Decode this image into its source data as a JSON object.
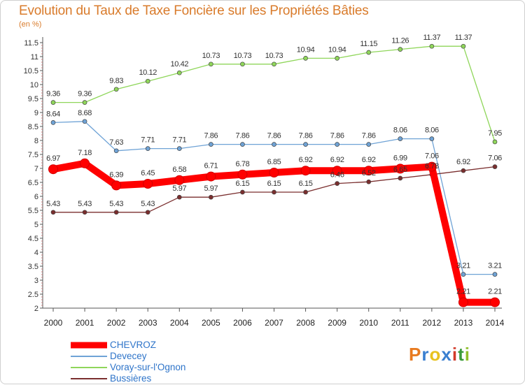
{
  "chart_data": {
    "type": "line",
    "title": "Evolution du Taux de Taxe Foncière sur les Propriétés Bâties",
    "ylabel": "(en %)",
    "xlabel": "",
    "x": [
      "2000",
      "2001",
      "2002",
      "2003",
      "2004",
      "2005",
      "2006",
      "2007",
      "2008",
      "2009",
      "2010",
      "2011",
      "2012",
      "2013",
      "2014"
    ],
    "ylim": [
      2,
      11.5
    ],
    "yticks": [
      "2",
      "2.5",
      "3",
      "3.5",
      "4",
      "4.5",
      "5",
      "5.5",
      "6",
      "6.5",
      "7",
      "7.5",
      "8",
      "8.5",
      "9",
      "9.5",
      "10",
      "10.5",
      "11",
      "11.5"
    ],
    "grid": false,
    "legend_position": "bottom-left",
    "series": [
      {
        "name": "CHEVROZ",
        "color": "#ff0000",
        "values": [
          6.97,
          7.18,
          6.39,
          6.45,
          6.58,
          6.71,
          6.78,
          6.85,
          6.92,
          6.92,
          6.92,
          6.99,
          7.06,
          2.21,
          2.21
        ],
        "labels": [
          "6.97",
          "7.18",
          "6.39",
          "6.45",
          "6.58",
          "6.71",
          "6.78",
          "6.85",
          "6.92",
          "6.92",
          "6.92",
          "6.99",
          "7.06",
          "2.21",
          "2.21"
        ]
      },
      {
        "name": "Devecey",
        "color": "#6fa3d6",
        "values": [
          8.64,
          8.68,
          7.63,
          7.71,
          7.71,
          7.86,
          7.86,
          7.86,
          7.86,
          7.86,
          7.86,
          8.06,
          8.06,
          3.21,
          3.21
        ],
        "labels": [
          "8.64",
          "8.68",
          "7.63",
          "7.71",
          "7.71",
          "7.86",
          "7.86",
          "7.86",
          "7.86",
          "7.86",
          "7.86",
          "8.06",
          "8.06",
          "3.21",
          "3.21"
        ]
      },
      {
        "name": "Voray-sur-l'Ognon",
        "color": "#8fd65a",
        "values": [
          9.36,
          9.36,
          9.83,
          10.12,
          10.42,
          10.73,
          10.73,
          10.73,
          10.94,
          10.94,
          11.15,
          11.26,
          11.37,
          11.37,
          7.95
        ],
        "labels": [
          "9.36",
          "9.36",
          "9.83",
          "10.12",
          "10.42",
          "10.73",
          "10.73",
          "10.73",
          "10.94",
          "10.94",
          "11.15",
          "11.26",
          "11.37",
          "11.37",
          "7.95"
        ]
      },
      {
        "name": "Bussières",
        "color": "#7a2e2e",
        "values": [
          5.43,
          5.43,
          5.43,
          5.43,
          5.97,
          5.97,
          6.15,
          6.15,
          6.15,
          6.46,
          6.52,
          6.65,
          6.78,
          6.92,
          7.06
        ],
        "labels": [
          "5.43",
          "5.43",
          "5.43",
          "5.43",
          "5.97",
          "5.97",
          "6.15",
          "6.15",
          "6.15",
          "6.46",
          "6.52",
          "6.65",
          "6.78",
          "6.92",
          "7.06"
        ]
      }
    ]
  },
  "legend": [
    {
      "label": "CHEVROZ",
      "color": "#ff0000"
    },
    {
      "label": "Devecey",
      "color": "#6fa3d6"
    },
    {
      "label": "Voray-sur-l'Ognon",
      "color": "#8fd65a"
    },
    {
      "label": "Bussières",
      "color": "#7a2e2e"
    }
  ],
  "logo": {
    "text": "Proxiti",
    "letters": [
      "P",
      "r",
      "o",
      "x",
      "i",
      "t",
      "i"
    ],
    "colors": [
      "#e87a1f",
      "#3a7fd0",
      "#e8c21f",
      "#3a7fd0",
      "#d23a2a",
      "#3a9a3a",
      "#8fbf2a"
    ]
  }
}
